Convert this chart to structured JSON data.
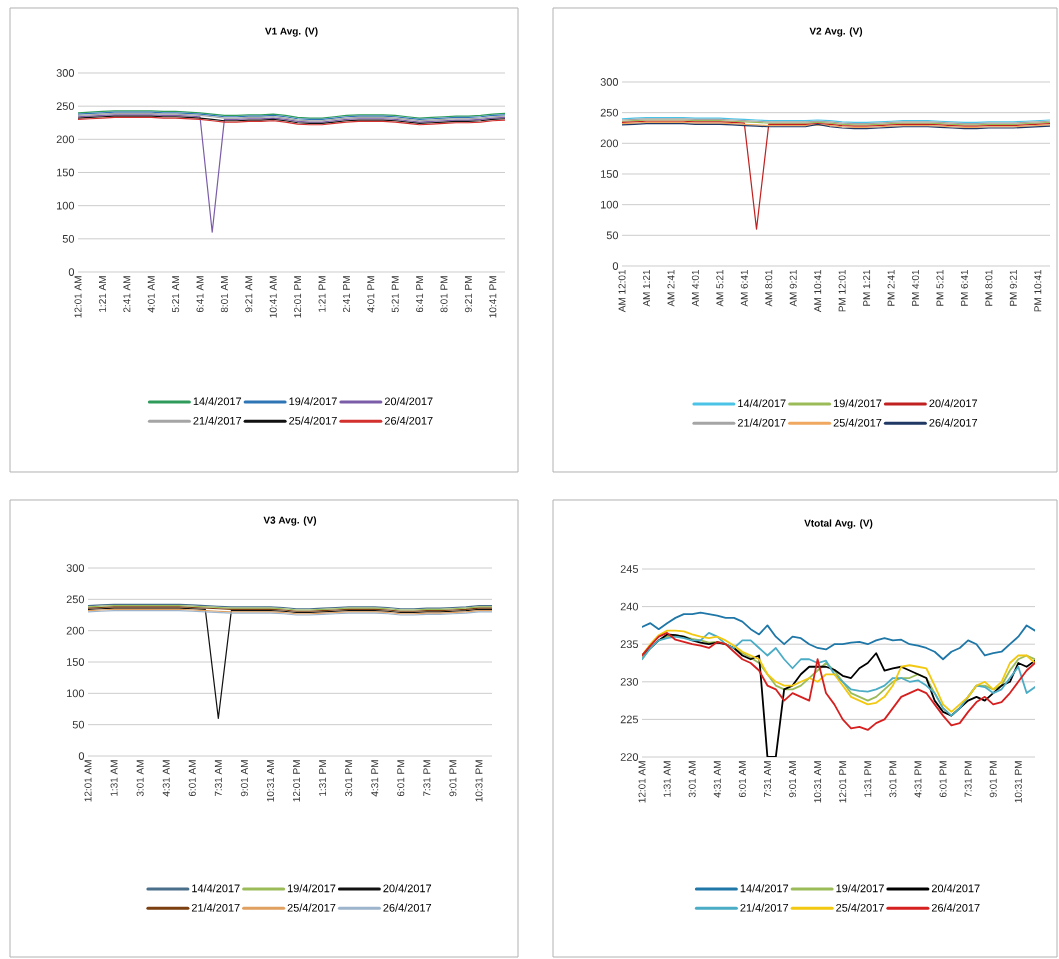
{
  "chart_data": [
    {
      "type": "line",
      "title": "V1 Avg. (V)",
      "categories": [
        "12:01 AM",
        null,
        "1:21 AM",
        null,
        "2:41 AM",
        null,
        "4:01 AM",
        null,
        "5:21 AM",
        null,
        "6:41 AM",
        null,
        "8:01 AM",
        null,
        "9:21 AM",
        null,
        "10:41 AM",
        null,
        "12:01 PM",
        null,
        "1:21 PM",
        null,
        "2:41 PM",
        null,
        "4:01 PM",
        null,
        "5:21 PM",
        null,
        "6:41 PM",
        null,
        "8:01 PM",
        null,
        "9:21 PM",
        null,
        "10:41 PM",
        null
      ],
      "series": [
        {
          "name": "14/4/2017",
          "color": "#2e9b5a",
          "values": [
            240,
            241,
            242,
            243,
            243,
            243,
            243,
            242,
            242,
            241,
            240,
            238,
            236,
            236,
            237,
            237,
            238,
            236,
            233,
            232,
            232,
            234,
            236,
            237,
            237,
            237,
            236,
            234,
            232,
            233,
            234,
            235,
            235,
            236,
            238,
            239
          ]
        },
        {
          "name": "19/4/2017",
          "color": "#2e75b6",
          "values": [
            238,
            239,
            240,
            241,
            241,
            241,
            241,
            240,
            240,
            239,
            238,
            236,
            234,
            234,
            235,
            235,
            236,
            234,
            231,
            230,
            230,
            232,
            234,
            235,
            235,
            235,
            234,
            232,
            230,
            231,
            232,
            233,
            233,
            234,
            236,
            237
          ]
        },
        {
          "name": "20/4/2017",
          "color": "#7a5ca8",
          "values": [
            234,
            235,
            236,
            237,
            237,
            237,
            237,
            236,
            236,
            235,
            234,
            60,
            230,
            230,
            231,
            231,
            232,
            230,
            227,
            226,
            226,
            228,
            230,
            231,
            231,
            231,
            230,
            228,
            226,
            227,
            228,
            229,
            229,
            230,
            232,
            233
          ]
        },
        {
          "name": "21/4/2017",
          "color": "#a5a5a5",
          "values": [
            236,
            237,
            238,
            239,
            239,
            239,
            239,
            238,
            238,
            237,
            236,
            234,
            232,
            232,
            233,
            233,
            234,
            232,
            229,
            228,
            228,
            230,
            232,
            233,
            233,
            233,
            232,
            230,
            228,
            229,
            230,
            231,
            231,
            232,
            234,
            235
          ]
        },
        {
          "name": "25/4/2017",
          "color": "#111111",
          "values": [
            232,
            233,
            234,
            235,
            235,
            235,
            235,
            234,
            234,
            233,
            232,
            230,
            228,
            228,
            229,
            229,
            230,
            228,
            225,
            224,
            224,
            226,
            228,
            229,
            229,
            229,
            228,
            226,
            224,
            225,
            226,
            227,
            227,
            228,
            230,
            231
          ]
        },
        {
          "name": "26/4/2017",
          "color": "#d2312d",
          "values": [
            230,
            231,
            232,
            233,
            233,
            233,
            233,
            232,
            232,
            231,
            230,
            228,
            226,
            226,
            227,
            227,
            228,
            226,
            223,
            222,
            222,
            224,
            226,
            227,
            227,
            227,
            226,
            224,
            222,
            223,
            224,
            225,
            225,
            226,
            228,
            229
          ]
        }
      ],
      "ylim": [
        0,
        300
      ],
      "yticks": [
        0,
        50,
        100,
        150,
        200,
        250,
        300
      ],
      "grid": "y",
      "legend": "bottom"
    },
    {
      "type": "line",
      "title": "V2 Avg. (V)",
      "categories": [
        "AM 12:01",
        null,
        "AM 1:21",
        null,
        "AM 2:41",
        null,
        "AM 4:01",
        null,
        "AM 5:21",
        null,
        "AM 6:41",
        null,
        "AM 8:01",
        null,
        "AM 9:21",
        null,
        "AM 10:41",
        null,
        "PM 12:01",
        null,
        "PM 1:21",
        null,
        "PM 2:41",
        null,
        "PM 4:01",
        null,
        "PM 5:21",
        null,
        "PM 6:41",
        null,
        "PM 8:01",
        null,
        "PM 9:21",
        null,
        "PM 10:41",
        null
      ],
      "series": [
        {
          "name": "14/4/2017",
          "color": "#4bc3e6",
          "values": [
            240,
            241,
            242,
            242,
            242,
            242,
            241,
            241,
            241,
            240,
            239,
            238,
            237,
            237,
            237,
            237,
            238,
            237,
            235,
            234,
            234,
            235,
            236,
            237,
            237,
            237,
            236,
            235,
            234,
            234,
            235,
            235,
            235,
            236,
            237,
            238
          ]
        },
        {
          "name": "19/4/2017",
          "color": "#9bbb59",
          "values": [
            236,
            237,
            238,
            238,
            238,
            238,
            237,
            237,
            237,
            236,
            235,
            234,
            233,
            233,
            233,
            233,
            234,
            233,
            231,
            230,
            230,
            231,
            232,
            233,
            233,
            233,
            232,
            231,
            230,
            230,
            231,
            231,
            231,
            232,
            233,
            234
          ]
        },
        {
          "name": "20/4/2017",
          "color": "#c0201f",
          "values": [
            234,
            235,
            236,
            236,
            236,
            236,
            235,
            235,
            235,
            234,
            233,
            60,
            231,
            231,
            231,
            231,
            232,
            231,
            229,
            228,
            228,
            229,
            230,
            231,
            231,
            231,
            230,
            229,
            228,
            228,
            229,
            229,
            229,
            230,
            231,
            232
          ]
        },
        {
          "name": "21/4/2017",
          "color": "#a5a5a5",
          "values": [
            238,
            239,
            240,
            240,
            240,
            240,
            239,
            239,
            239,
            238,
            237,
            236,
            235,
            235,
            235,
            235,
            236,
            235,
            233,
            232,
            232,
            233,
            234,
            235,
            235,
            235,
            234,
            233,
            232,
            232,
            233,
            233,
            233,
            234,
            235,
            236
          ]
        },
        {
          "name": "25/4/2017",
          "color": "#f0a860",
          "values": [
            232,
            233,
            234,
            234,
            234,
            234,
            233,
            233,
            233,
            232,
            231,
            230,
            229,
            229,
            229,
            229,
            230,
            229,
            227,
            226,
            226,
            227,
            228,
            229,
            229,
            229,
            228,
            227,
            226,
            226,
            227,
            227,
            227,
            228,
            229,
            230
          ]
        },
        {
          "name": "26/4/2017",
          "color": "#1f3864",
          "values": [
            230,
            231,
            232,
            232,
            232,
            232,
            231,
            231,
            231,
            230,
            229,
            228,
            227,
            227,
            227,
            227,
            231,
            227,
            225,
            224,
            224,
            225,
            226,
            227,
            227,
            227,
            226,
            225,
            224,
            224,
            225,
            225,
            225,
            226,
            227,
            228
          ]
        }
      ],
      "ylim": [
        0,
        300
      ],
      "yticks": [
        0,
        50,
        100,
        150,
        200,
        250,
        300
      ],
      "grid": "y",
      "legend": "bottom"
    },
    {
      "type": "line",
      "title": "V3 Avg. (V)",
      "categories": [
        "12:01 AM",
        null,
        "1:31 AM",
        null,
        "3:01 AM",
        null,
        "4:31 AM",
        null,
        "6:01 AM",
        null,
        "7:31 AM",
        null,
        "9:01 AM",
        null,
        "10:31 AM",
        null,
        "12:01 PM",
        null,
        "1:31 PM",
        null,
        "3:01 PM",
        null,
        "4:31 PM",
        null,
        "6:01 PM",
        null,
        "7:31 PM",
        null,
        "9:01 PM",
        null,
        "10:31 PM",
        null
      ],
      "series": [
        {
          "name": "14/4/2017",
          "color": "#4a6f8a",
          "values": [
            240,
            241,
            242,
            242,
            242,
            242,
            242,
            242,
            241,
            240,
            239,
            238,
            238,
            238,
            238,
            237,
            235,
            235,
            236,
            237,
            238,
            238,
            238,
            237,
            235,
            235,
            236,
            236,
            237,
            238,
            240,
            240
          ]
        },
        {
          "name": "19/4/2017",
          "color": "#9bbb59",
          "values": [
            238,
            239,
            240,
            240,
            240,
            240,
            240,
            240,
            239,
            238,
            237,
            236,
            236,
            236,
            236,
            235,
            233,
            233,
            234,
            235,
            236,
            236,
            236,
            235,
            233,
            233,
            234,
            234,
            235,
            236,
            238,
            238
          ]
        },
        {
          "name": "20/4/2017",
          "color": "#111111",
          "values": [
            234,
            235,
            236,
            236,
            236,
            236,
            236,
            236,
            235,
            234,
            60,
            232,
            232,
            232,
            232,
            231,
            229,
            229,
            230,
            231,
            232,
            232,
            232,
            231,
            229,
            229,
            230,
            230,
            231,
            232,
            234,
            234
          ]
        },
        {
          "name": "21/4/2017",
          "color": "#7b3f10",
          "values": [
            236,
            237,
            238,
            238,
            238,
            238,
            238,
            238,
            237,
            236,
            235,
            234,
            234,
            234,
            234,
            233,
            231,
            231,
            232,
            233,
            234,
            234,
            234,
            233,
            231,
            231,
            232,
            232,
            233,
            234,
            236,
            236
          ]
        },
        {
          "name": "25/4/2017",
          "color": "#e0a060",
          "values": [
            232,
            233,
            234,
            234,
            234,
            234,
            234,
            234,
            233,
            232,
            231,
            230,
            230,
            230,
            230,
            229,
            227,
            227,
            228,
            229,
            230,
            230,
            230,
            229,
            227,
            227,
            228,
            228,
            229,
            230,
            232,
            232
          ]
        },
        {
          "name": "26/4/2017",
          "color": "#9cb4cc",
          "values": [
            230,
            231,
            232,
            232,
            232,
            232,
            232,
            232,
            231,
            230,
            229,
            228,
            228,
            228,
            228,
            227,
            225,
            225,
            226,
            227,
            228,
            228,
            228,
            227,
            225,
            225,
            226,
            226,
            227,
            228,
            230,
            230
          ]
        }
      ],
      "ylim": [
        0,
        300
      ],
      "yticks": [
        0,
        50,
        100,
        150,
        200,
        250,
        300
      ],
      "grid": "y",
      "legend": "bottom"
    },
    {
      "type": "line",
      "title": "Vtotal Avg. (V)",
      "categories": [
        "12:01 AM",
        null,
        null,
        "1:31 AM",
        null,
        null,
        "3:01 AM",
        null,
        null,
        "4:31 AM",
        null,
        null,
        "6:01 AM",
        null,
        null,
        "7:31 AM",
        null,
        null,
        "9:01 AM",
        null,
        null,
        "10:31 AM",
        null,
        null,
        "12:01 PM",
        null,
        null,
        "1:31 PM",
        null,
        null,
        "3:01 PM",
        null,
        null,
        "4:31 PM",
        null,
        null,
        "6:01 PM",
        null,
        null,
        "7:31 PM",
        null,
        null,
        "9:01 PM",
        null,
        null,
        "10:31 PM",
        null,
        null
      ],
      "series": [
        {
          "name": "14/4/2017",
          "color": "#1f77a8",
          "values": [
            237.3,
            237.8,
            237,
            237.8,
            238.5,
            239,
            239,
            239.2,
            239,
            238.8,
            238.5,
            238.5,
            238,
            237,
            236.3,
            237.5,
            236,
            235,
            236,
            235.8,
            235,
            234.5,
            234.3,
            235,
            235,
            235.2,
            235.3,
            235,
            235.5,
            235.8,
            235.5,
            235.6,
            235,
            234.8,
            234.5,
            234,
            233,
            234,
            234.5,
            235.5,
            235,
            233.5,
            233.8,
            234,
            235,
            236,
            237.5,
            236.8
          ]
        },
        {
          "name": "19/4/2017",
          "color": "#9bbb59",
          "values": [
            233,
            234.5,
            235.5,
            236,
            236.2,
            236,
            235.7,
            235.5,
            235.2,
            235.3,
            235,
            234.5,
            233.8,
            233.2,
            232.5,
            231,
            229.5,
            229,
            229,
            229.5,
            230.5,
            231.5,
            232.5,
            231.5,
            230,
            228.5,
            228,
            227.5,
            228,
            229,
            230,
            230.5,
            230.5,
            231,
            230.5,
            228.5,
            226.5,
            225.5,
            226.5,
            228,
            229.5,
            229.5,
            229,
            229.5,
            231.5,
            233,
            233.5,
            233
          ]
        },
        {
          "name": "20/4/2017",
          "color": "#000000",
          "values": [
            233.5,
            234.5,
            235.5,
            236.3,
            236.2,
            236,
            235.5,
            235.2,
            235,
            235.2,
            235,
            234.5,
            233.5,
            233,
            233.5,
            220,
            220,
            229,
            229.5,
            231,
            232,
            232,
            232,
            231.6,
            230.8,
            230.5,
            231.8,
            232.5,
            233.8,
            231.5,
            231.8,
            232,
            231.5,
            231,
            230.5,
            227.5,
            226,
            225.5,
            226.5,
            227.5,
            228,
            227.5,
            228.5,
            229.5,
            230,
            232.5,
            232,
            232.8
          ]
        },
        {
          "name": "21/4/2017",
          "color": "#4bacc6",
          "values": [
            233,
            234.5,
            235.5,
            235.8,
            236,
            235.8,
            235.5,
            235.5,
            236.5,
            236,
            235,
            234.5,
            235.5,
            235.5,
            234.5,
            233.5,
            234.5,
            233,
            231.8,
            233,
            233,
            232.5,
            232.8,
            231,
            230,
            229,
            228.8,
            228.7,
            229,
            229.5,
            230.5,
            230.5,
            230,
            230.2,
            229.5,
            228.5,
            226.5,
            225.5,
            226.5,
            228,
            229.5,
            229.3,
            228.5,
            229,
            230.5,
            232,
            228.5,
            229.3
          ]
        },
        {
          "name": "25/4/2017",
          "color": "#f2c811",
          "values": [
            233.5,
            235,
            236.2,
            236.8,
            236.8,
            236.7,
            236.3,
            236,
            235.8,
            236,
            235.5,
            234.8,
            234,
            233.5,
            233,
            231,
            230,
            229.5,
            229.5,
            230,
            230.5,
            230,
            231,
            231,
            229.5,
            228,
            227.5,
            227,
            227.2,
            228,
            229.5,
            232,
            232.2,
            232,
            231.8,
            229.5,
            227,
            226,
            227,
            228,
            229.5,
            230,
            229,
            230,
            232.5,
            233.5,
            233.5,
            232.5
          ]
        },
        {
          "name": "26/4/2017",
          "color": "#d62020",
          "values": [
            233.5,
            234.8,
            236,
            236.5,
            235.6,
            235.3,
            235,
            234.8,
            234.5,
            235.3,
            235,
            234,
            233,
            232.5,
            231.5,
            229.5,
            229,
            227.5,
            228.5,
            228,
            227.5,
            233,
            228.5,
            227,
            225,
            223.8,
            224,
            223.6,
            224.5,
            225,
            226.5,
            228,
            228.5,
            229,
            228.5,
            227,
            225.5,
            224.2,
            224.5,
            226,
            227.3,
            228,
            227,
            227.3,
            228.5,
            230,
            231.5,
            232.5
          ]
        }
      ],
      "ylim": [
        220,
        245
      ],
      "yticks": [
        220,
        225,
        230,
        235,
        240,
        245
      ],
      "grid": "y",
      "legend": "bottom"
    }
  ]
}
